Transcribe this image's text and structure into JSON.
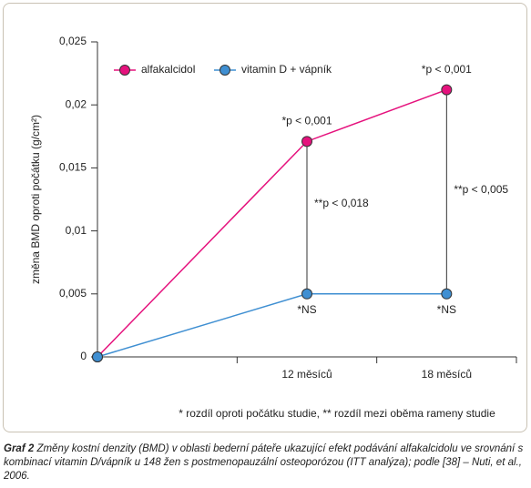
{
  "chart_data": {
    "type": "line",
    "y_label": "změna BMD oproti počátku (g/cm²)",
    "categories": [
      null,
      "12 měsíců",
      "18 měsíců"
    ],
    "series": [
      {
        "name": "alfakalcidol",
        "color": "#e5127d",
        "values": [
          0,
          0.0171,
          0.0212
        ]
      },
      {
        "name": "vitamin D + vápník",
        "color": "#3f8fd2",
        "values": [
          0,
          0.005,
          0.005
        ]
      }
    ],
    "ylim": [
      0,
      0.025
    ],
    "yticks": [
      0,
      {
        "value": 0.005,
        "label": "0,005"
      },
      {
        "value": 0.01,
        "label": "0,01"
      },
      {
        "value": 0.015,
        "label": "0,015"
      },
      {
        "value": 0.02,
        "label": "0,02"
      },
      {
        "value": 0.025,
        "label": "0,025"
      }
    ],
    "annotations": [
      "*p < 0,001",
      "*p < 0,001",
      "**p < 0,018",
      "**p < 0,005",
      "*NS",
      "*NS"
    ],
    "footnote": "* rozdíl oproti počátku studie, ** rozdíl mezi oběma rameny studie",
    "grid": false
  },
  "caption": {
    "label": "Graf 2",
    "text": "Změny kostní denzity (BMD) v oblasti bederní páteře ukazující efekt podávání alfakalcidolu ve srovnání s kombinací vitamin D/vápník u 148 žen s postmenopauzální osteoporózou (ITT analýza); podle [38] – Nuti, et al., 2006."
  }
}
